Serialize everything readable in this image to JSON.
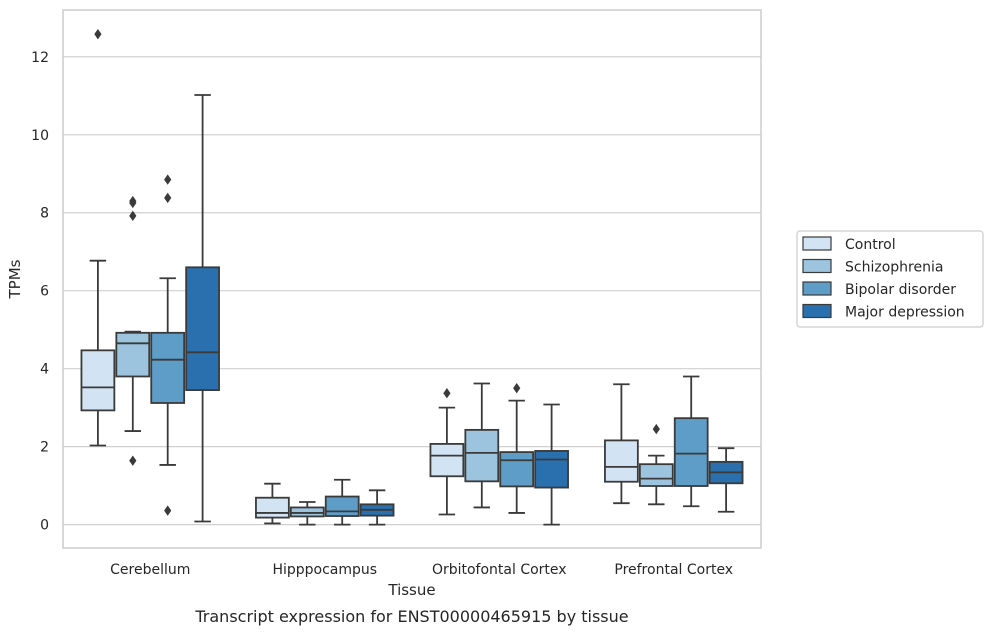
{
  "chart_data": {
    "type": "box",
    "caption": "Transcript expression for ENST00000465915 by tissue",
    "xlabel": "Tissue",
    "ylabel": "TPMs",
    "ylim": [
      -0.6,
      13.2
    ],
    "yticks": [
      0,
      2,
      4,
      6,
      8,
      10,
      12
    ],
    "grid": "horizontal",
    "legend_position": "right",
    "categories": [
      "Cerebellum",
      "Hipppocampus",
      "Orbitofontal Cortex",
      "Prefrontal Cortex"
    ],
    "series": [
      {
        "name": "Control",
        "color": "#d2e3f3",
        "boxes": [
          {
            "whisker_low": 2.03,
            "q1": 2.93,
            "median": 3.52,
            "q3": 4.47,
            "whisker_high": 6.77,
            "outliers": [
              12.58
            ]
          },
          {
            "whisker_low": 0.03,
            "q1": 0.18,
            "median": 0.3,
            "q3": 0.69,
            "whisker_high": 1.05,
            "outliers": []
          },
          {
            "whisker_low": 0.26,
            "q1": 1.24,
            "median": 1.77,
            "q3": 2.07,
            "whisker_high": 3.0,
            "outliers": [
              3.37
            ]
          },
          {
            "whisker_low": 0.55,
            "q1": 1.1,
            "median": 1.48,
            "q3": 2.16,
            "whisker_high": 3.6,
            "outliers": []
          }
        ]
      },
      {
        "name": "Schizophrenia",
        "color": "#9dc4de",
        "boxes": [
          {
            "whisker_low": 2.4,
            "q1": 3.8,
            "median": 4.65,
            "q3": 4.92,
            "whisker_high": 4.95,
            "outliers": [
              1.64,
              7.92,
              8.25,
              8.3
            ]
          },
          {
            "whisker_low": 0.0,
            "q1": 0.21,
            "median": 0.3,
            "q3": 0.44,
            "whisker_high": 0.58,
            "outliers": []
          },
          {
            "whisker_low": 0.44,
            "q1": 1.11,
            "median": 1.84,
            "q3": 2.43,
            "whisker_high": 3.62,
            "outliers": []
          },
          {
            "whisker_low": 0.52,
            "q1": 0.99,
            "median": 1.18,
            "q3": 1.55,
            "whisker_high": 1.77,
            "outliers": [
              2.45
            ]
          }
        ]
      },
      {
        "name": "Bipolar disorder",
        "color": "#5f9dc9",
        "boxes": [
          {
            "whisker_low": 1.53,
            "q1": 3.12,
            "median": 4.23,
            "q3": 4.92,
            "whisker_high": 6.32,
            "outliers": [
              0.36,
              8.38,
              8.85
            ]
          },
          {
            "whisker_low": 0.0,
            "q1": 0.22,
            "median": 0.34,
            "q3": 0.72,
            "whisker_high": 1.15,
            "outliers": []
          },
          {
            "whisker_low": 0.3,
            "q1": 0.98,
            "median": 1.65,
            "q3": 1.86,
            "whisker_high": 3.18,
            "outliers": [
              3.5
            ]
          },
          {
            "whisker_low": 0.47,
            "q1": 0.99,
            "median": 1.82,
            "q3": 2.73,
            "whisker_high": 3.8,
            "outliers": []
          }
        ]
      },
      {
        "name": "Major depression",
        "color": "#2a6fae",
        "boxes": [
          {
            "whisker_low": 0.08,
            "q1": 3.45,
            "median": 4.42,
            "q3": 6.6,
            "whisker_high": 11.02,
            "outliers": []
          },
          {
            "whisker_low": 0.0,
            "q1": 0.23,
            "median": 0.38,
            "q3": 0.52,
            "whisker_high": 0.88,
            "outliers": []
          },
          {
            "whisker_low": 0.0,
            "q1": 0.95,
            "median": 1.67,
            "q3": 1.89,
            "whisker_high": 3.08,
            "outliers": []
          },
          {
            "whisker_low": 0.33,
            "q1": 1.06,
            "median": 1.34,
            "q3": 1.61,
            "whisker_high": 1.96,
            "outliers": []
          }
        ]
      }
    ]
  }
}
